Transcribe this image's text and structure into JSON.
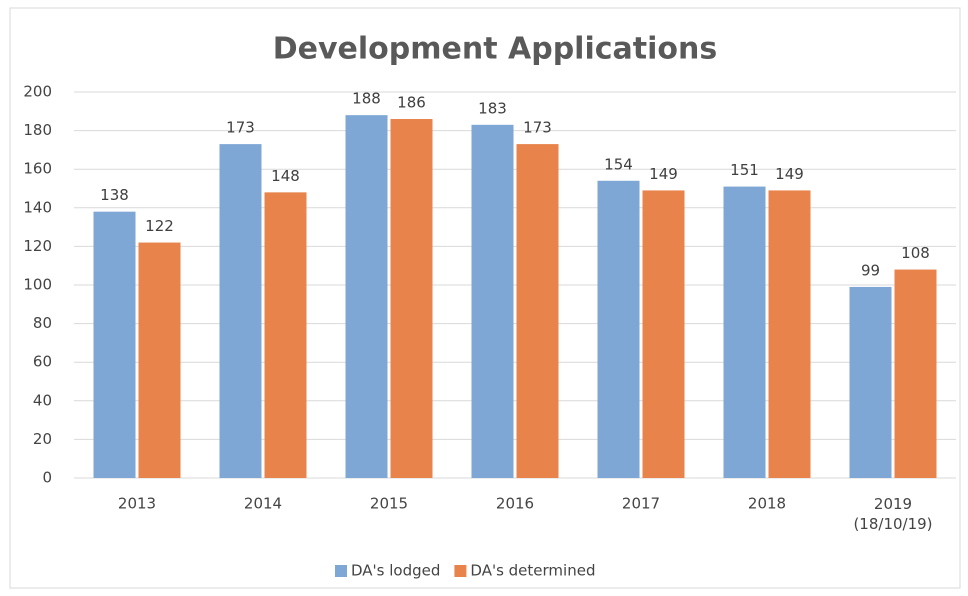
{
  "chart_data": {
    "type": "bar",
    "title": "Development Applications",
    "categories": [
      "2013",
      "2014",
      "2015",
      "2016",
      "2017",
      "2018",
      "2019 (18/10/19)"
    ],
    "series": [
      {
        "name": "DA's lodged",
        "color": "#7ea7d6",
        "values": [
          138,
          173,
          188,
          183,
          154,
          151,
          99
        ]
      },
      {
        "name": "DA's determined",
        "color": "#e8834c",
        "values": [
          122,
          148,
          186,
          173,
          149,
          149,
          108
        ]
      }
    ],
    "ylim": [
      0,
      200
    ],
    "yticks": [
      0,
      20,
      40,
      60,
      80,
      100,
      120,
      140,
      160,
      180,
      200
    ],
    "grid": true,
    "legend": "bottom"
  }
}
